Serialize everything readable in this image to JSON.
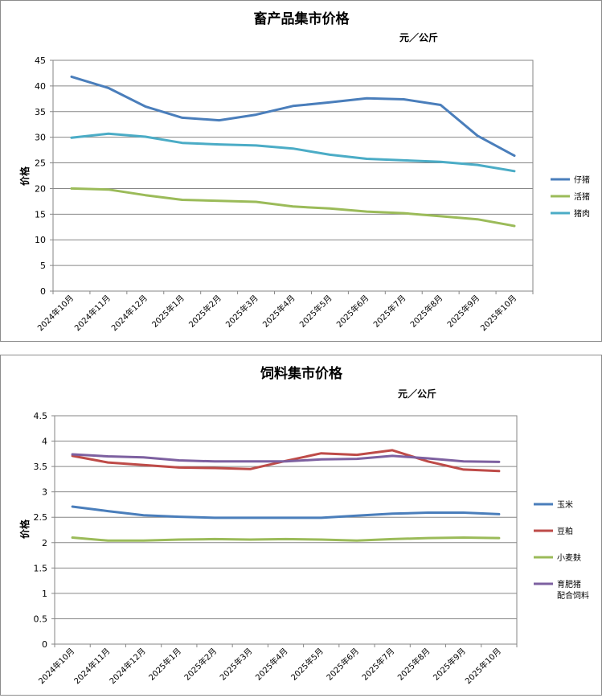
{
  "charts": [
    {
      "id": "livestock",
      "type": "line",
      "title": "畜产品集市价格",
      "unit": "元／公斤",
      "ylabel": "价格",
      "categories": [
        "2024年10月",
        "2024年11月",
        "2024年12月",
        "2025年1月",
        "2025年2月",
        "2025年3月",
        "2025年4月",
        "2025年5月",
        "2025年6月",
        "2025年7月",
        "2025年8月",
        "2025年9月",
        "2025年10月"
      ],
      "ylim": [
        0,
        45
      ],
      "ytick_step": 5,
      "ytick_labels": [
        "0",
        "5",
        "10",
        "15",
        "20",
        "25",
        "30",
        "35",
        "40",
        "45"
      ],
      "grid": true,
      "legend_position": "right",
      "series": [
        {
          "name": "仔猪",
          "color": "#4a7ebb",
          "values": [
            41.8,
            39.6,
            36.0,
            33.8,
            33.3,
            34.4,
            36.1,
            36.8,
            37.6,
            37.4,
            36.3,
            30.3,
            26.4
          ]
        },
        {
          "name": "活猪",
          "color": "#9bbb59",
          "values": [
            20.0,
            19.8,
            18.7,
            17.8,
            17.6,
            17.4,
            16.5,
            16.1,
            15.5,
            15.2,
            14.6,
            14.0,
            12.7
          ]
        },
        {
          "name": "猪肉",
          "color": "#4bacc6",
          "values": [
            29.9,
            30.7,
            30.1,
            28.9,
            28.6,
            28.4,
            27.8,
            26.6,
            25.8,
            25.5,
            25.2,
            24.6,
            23.4
          ]
        }
      ]
    },
    {
      "id": "feed",
      "type": "line",
      "title": "饲料集市价格",
      "unit": "元／公斤",
      "ylabel": "价格",
      "categories": [
        "2024年10月",
        "2024年11月",
        "2024年12月",
        "2025年1月",
        "2025年2月",
        "2025年3月",
        "2025年4月",
        "2025年5月",
        "2025年6月",
        "2025年7月",
        "2025年8月",
        "2025年9月",
        "2025年10月"
      ],
      "ylim": [
        0,
        4.5
      ],
      "ytick_step": 0.5,
      "ytick_labels": [
        "0",
        "0.5",
        "1",
        "1.5",
        "2",
        "2.5",
        "3",
        "3.5",
        "4",
        "4.5"
      ],
      "grid": true,
      "legend_position": "right",
      "series": [
        {
          "name": "玉米",
          "color": "#4a7ebb",
          "values": [
            2.71,
            2.62,
            2.54,
            2.51,
            2.49,
            2.49,
            2.49,
            2.49,
            2.53,
            2.57,
            2.59,
            2.59,
            2.56
          ]
        },
        {
          "name": "豆粕",
          "color": "#be4b48",
          "values": [
            3.71,
            3.58,
            3.53,
            3.48,
            3.47,
            3.45,
            3.61,
            3.76,
            3.73,
            3.82,
            3.6,
            3.44,
            3.41
          ]
        },
        {
          "name": "小麦麸",
          "color": "#9bbb59",
          "values": [
            2.1,
            2.04,
            2.04,
            2.06,
            2.07,
            2.06,
            2.07,
            2.06,
            2.04,
            2.07,
            2.09,
            2.1,
            2.09
          ]
        },
        {
          "name": "育肥猪配合饲料",
          "name_lines": [
            "育肥猪",
            "配合饲料"
          ],
          "color": "#7d60a0",
          "values": [
            3.74,
            3.7,
            3.68,
            3.62,
            3.6,
            3.6,
            3.6,
            3.64,
            3.65,
            3.71,
            3.66,
            3.6,
            3.59
          ]
        }
      ]
    }
  ]
}
